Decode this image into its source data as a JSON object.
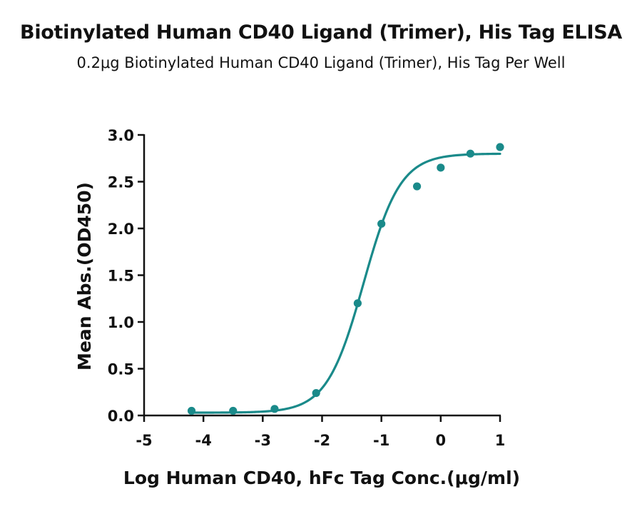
{
  "chart_data": {
    "type": "scatter",
    "title": "Biotinylated Human CD40 Ligand (Trimer), His Tag ELISA",
    "subtitle": "0.2μg Biotinylated Human CD40 Ligand (Trimer), His Tag Per Well",
    "xlabel": "Log Human CD40, hFc Tag Conc.(μg/ml)",
    "ylabel": "Mean Abs.(OD450)",
    "xlim": [
      -5,
      1
    ],
    "ylim": [
      0,
      3
    ],
    "xticks": [
      -5,
      -4,
      -3,
      -2,
      -1,
      0,
      1
    ],
    "yticks": [
      0.0,
      0.5,
      1.0,
      1.5,
      2.0,
      2.5,
      3.0
    ],
    "grid": false,
    "color": "#1a8a8a",
    "series": [
      {
        "x": [
          -4.2,
          -3.5,
          -2.8,
          -2.1,
          -1.4,
          -1.0,
          -0.4,
          0.0,
          0.5,
          1.0
        ],
        "y": [
          0.05,
          0.05,
          0.07,
          0.24,
          1.2,
          2.05,
          2.45,
          2.65,
          2.8,
          2.87
        ]
      }
    ],
    "fit_curve": {
      "type": "4PL",
      "bottom": 0.03,
      "top": 2.8,
      "log_ec50": -1.3,
      "hill_slope": 1.4,
      "x_range": [
        -4.2,
        1.0
      ]
    }
  }
}
